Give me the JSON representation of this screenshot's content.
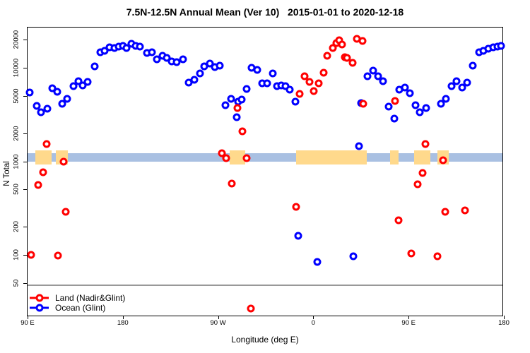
{
  "title": "7.5N-12.5N Annual Mean (Ver 10)   2015-01-01 to 2020-12-18",
  "axes": {
    "xlabel": "Longitude (deg E)",
    "ylabel": "N Total",
    "y_scale": "log",
    "yticks": [
      "20000",
      "10000",
      "5000",
      "2000",
      "1000",
      "500",
      "200",
      "100",
      "50"
    ],
    "xticks": [
      {
        "label": "90 E",
        "deg": 90
      },
      {
        "label": "180",
        "deg": 180
      },
      {
        "label": "90 W",
        "deg": 270
      },
      {
        "label": "0",
        "deg": 360
      },
      {
        "label": "90 E",
        "deg": 450
      },
      {
        "label": "180",
        "deg": 540
      }
    ]
  },
  "legend": [
    {
      "label": "Land (Nadir&Glint)",
      "color": "#ff0000"
    },
    {
      "label": "Ocean (Glint)",
      "color": "#0000ff"
    }
  ],
  "colors": {
    "land": "#ff0000",
    "ocean": "#0000ff",
    "strip_ocean": "#a9c0e2",
    "strip_land": "#ffd98c",
    "ref_line": "#999999"
  },
  "chart_data": {
    "type": "scatter",
    "title": "7.5N-12.5N Annual Mean (Ver 10)   2015-01-01 to 2020-12-18",
    "xlabel": "Longitude (deg E)",
    "ylabel": "N Total",
    "x_axis_note": "longitude axis runs 90E -> 180 -> 90W -> 0 -> 90E -> 180, stored as continuous degrees 90..540",
    "xlim": [
      90,
      540
    ],
    "ylim_log": [
      22,
      26000
    ],
    "ref_line_value": 48,
    "map_strip": {
      "note": "coastline strip drawn at N=1000 level; ocean band with land patches",
      "value_level": 1000,
      "land_patches_deg": [
        [
          97.3,
          112.7
        ],
        [
          116.7,
          128
        ],
        [
          280.9,
          295.6
        ],
        [
          343.7,
          410.5
        ],
        [
          432.5,
          440.5
        ],
        [
          455.2,
          470.5
        ],
        [
          477.2,
          487.9
        ]
      ]
    },
    "series": [
      {
        "name": "Ocean (Glint)",
        "color": "#0000ff",
        "points": [
          [
            92,
            5440
          ],
          [
            98.5,
            3910
          ],
          [
            102.7,
            3340
          ],
          [
            108.5,
            3660
          ],
          [
            113.2,
            6000
          ],
          [
            118,
            5530
          ],
          [
            122.9,
            4120
          ],
          [
            127.4,
            4620
          ],
          [
            133.2,
            6360
          ],
          [
            137.9,
            7180
          ],
          [
            142.3,
            6470
          ],
          [
            147,
            7010
          ],
          [
            153.6,
            10400
          ],
          [
            158.6,
            14600
          ],
          [
            163,
            15200
          ],
          [
            167.4,
            16500
          ],
          [
            171.9,
            16300
          ],
          [
            176.3,
            16700
          ],
          [
            180,
            17100
          ],
          [
            183.5,
            16300
          ],
          [
            188,
            18000
          ],
          [
            192,
            17100
          ],
          [
            196.4,
            16900
          ],
          [
            203,
            14300
          ],
          [
            207.5,
            14600
          ],
          [
            212,
            12400
          ],
          [
            217.3,
            13300
          ],
          [
            221.7,
            12700
          ],
          [
            226.2,
            11700
          ],
          [
            230.7,
            11500
          ],
          [
            236.9,
            12200
          ],
          [
            242,
            6930
          ],
          [
            247.8,
            7470
          ],
          [
            252.7,
            8650
          ],
          [
            257.1,
            10280
          ],
          [
            262.2,
            11020
          ],
          [
            267.1,
            10160
          ],
          [
            271.6,
            10570
          ],
          [
            277.1,
            3950
          ],
          [
            282.1,
            4640
          ],
          [
            287.6,
            2960
          ],
          [
            289,
            4340
          ],
          [
            292.3,
            4570
          ],
          [
            297.2,
            5930
          ],
          [
            301.6,
            9930
          ],
          [
            307.2,
            9420
          ],
          [
            311.7,
            6850
          ],
          [
            316.6,
            6780
          ],
          [
            321.7,
            8650
          ],
          [
            325.5,
            6390
          ],
          [
            329.9,
            6470
          ],
          [
            333.9,
            6390
          ],
          [
            337.7,
            5860
          ],
          [
            342.9,
            4320
          ],
          [
            345.5,
            161
          ],
          [
            364,
            84
          ],
          [
            397.8,
            97
          ],
          [
            403.4,
            1460
          ],
          [
            405.2,
            4190
          ],
          [
            411.4,
            8150
          ],
          [
            416.7,
            9270
          ],
          [
            421.4,
            8150
          ],
          [
            425.8,
            7180
          ],
          [
            431.4,
            3850
          ],
          [
            436.3,
            2880
          ],
          [
            441.4,
            5830
          ],
          [
            446.3,
            6110
          ],
          [
            451.4,
            5370
          ],
          [
            456.3,
            3950
          ],
          [
            460.7,
            3330
          ],
          [
            466.3,
            3730
          ],
          [
            480.8,
            4120
          ],
          [
            485.2,
            4620
          ],
          [
            490.8,
            6390
          ],
          [
            495.2,
            7180
          ],
          [
            500.8,
            6180
          ],
          [
            505.2,
            6930
          ],
          [
            510.8,
            10570
          ],
          [
            516.4,
            14550
          ],
          [
            520.8,
            15220
          ],
          [
            525.2,
            15850
          ],
          [
            529.7,
            16520
          ],
          [
            533.7,
            16800
          ],
          [
            537,
            17000
          ]
        ]
      },
      {
        "name": "Land (Nadir&Glint)",
        "color": "#ff0000",
        "points": [
          [
            93.3,
            100
          ],
          [
            99.8,
            560
          ],
          [
            104.5,
            760
          ],
          [
            107.8,
            1520
          ],
          [
            118.9,
            98
          ],
          [
            124.1,
            1000
          ],
          [
            126.3,
            289
          ],
          [
            273.8,
            1220
          ],
          [
            277.8,
            1080
          ],
          [
            282.7,
            580
          ],
          [
            288.3,
            3690
          ],
          [
            292.8,
            2110
          ],
          [
            297.2,
            1090
          ],
          [
            301,
            27
          ],
          [
            343.9,
            328
          ],
          [
            347.3,
            5280
          ],
          [
            351.7,
            8150
          ],
          [
            356.2,
            7050
          ],
          [
            360.7,
            5600
          ],
          [
            365.2,
            6850
          ],
          [
            369.7,
            8870
          ],
          [
            373,
            13340
          ],
          [
            378.5,
            16330
          ],
          [
            381.9,
            18330
          ],
          [
            384.5,
            19630
          ],
          [
            387.4,
            17800
          ],
          [
            389.7,
            12940
          ],
          [
            391.9,
            12790
          ],
          [
            397.4,
            11220
          ],
          [
            401.2,
            20300
          ],
          [
            406.3,
            19230
          ],
          [
            407.4,
            4120
          ],
          [
            437.4,
            4440
          ],
          [
            440.3,
            236
          ],
          [
            452.3,
            103
          ],
          [
            458.5,
            570
          ],
          [
            463,
            750
          ],
          [
            465.9,
            1520
          ],
          [
            477.4,
            97
          ],
          [
            482.6,
            1020
          ],
          [
            484.6,
            287
          ],
          [
            503,
            300
          ]
        ]
      }
    ]
  }
}
